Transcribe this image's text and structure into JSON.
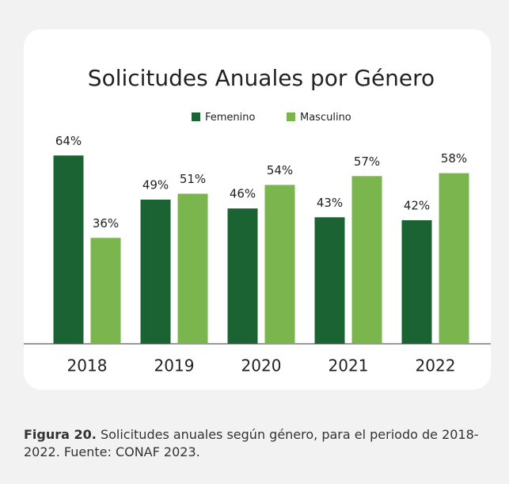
{
  "chart_data": {
    "type": "bar",
    "title": "Solicitudes Anuales por Género",
    "categories": [
      "2018",
      "2019",
      "2020",
      "2021",
      "2022"
    ],
    "series": [
      {
        "name": "Femenino",
        "color": "#1b6333",
        "values": [
          64,
          49,
          46,
          43,
          42
        ],
        "value_labels": [
          "64%",
          "49%",
          "46%",
          "43%",
          "42%"
        ]
      },
      {
        "name": "Masculino",
        "color": "#7ab54e",
        "values": [
          36,
          51,
          54,
          57,
          58
        ],
        "value_labels": [
          "36%",
          "51%",
          "54%",
          "57%",
          "58%"
        ]
      }
    ],
    "ylim": [
      0,
      70
    ],
    "legend": "top"
  },
  "caption": {
    "label": "Figura 20.",
    "text": " Solicitudes anuales según género, para el periodo de 2018-2022. Fuente: CONAF 2023."
  }
}
